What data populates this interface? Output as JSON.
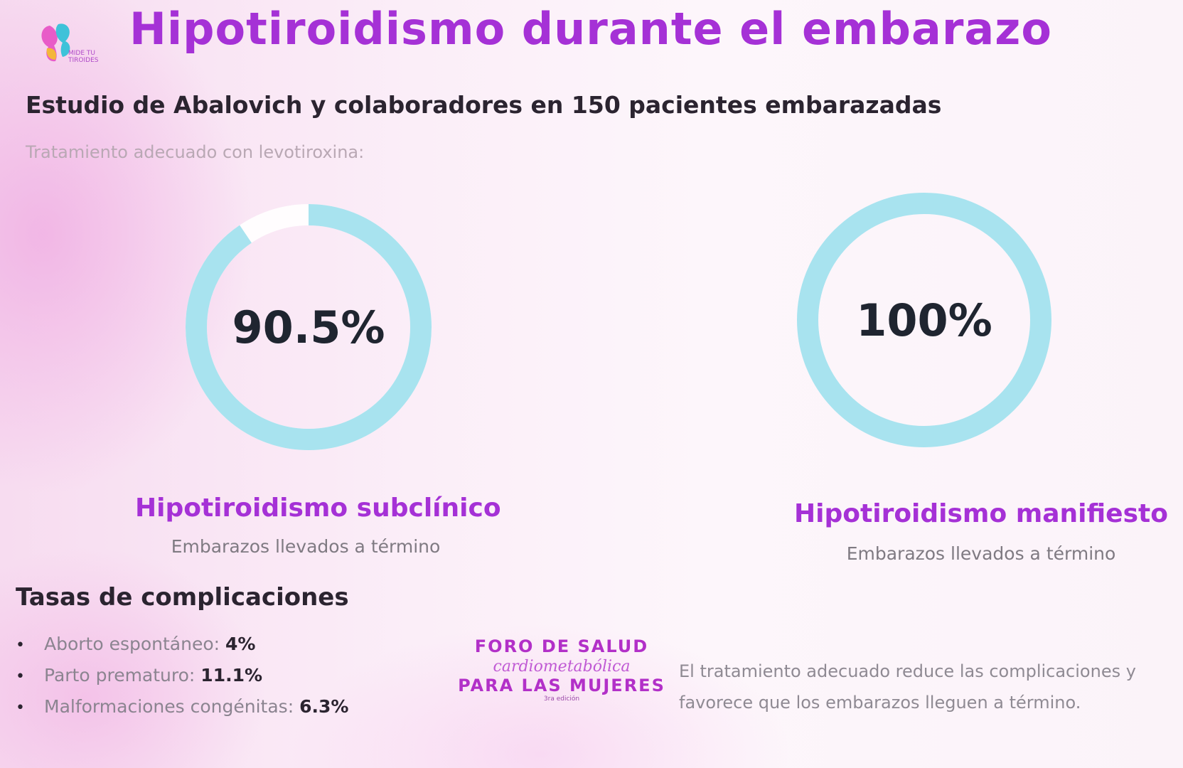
{
  "slide": {
    "title": "Hipotiroidismo durante el embarazo",
    "subtitle": "Estudio de Abalovich y colaboradores en 150 pacientes embarazadas",
    "caption": "Tratamiento adecuado con levotiroxina:",
    "logo_text": "MIDE TU TIROIDES"
  },
  "chart_data": [
    {
      "type": "pie",
      "style": "donut",
      "value_percent": 90.5,
      "label": "90.5%",
      "title": "Hipotiroidismo subclínico",
      "subtitle": "Embarazos llevados a término"
    },
    {
      "type": "pie",
      "style": "donut",
      "value_percent": 100,
      "label": "100%",
      "title": "Hipotiroidismo manifiesto",
      "subtitle": "Embarazos llevados a término"
    }
  ],
  "colors": {
    "accent": "#a531d6",
    "ring": "#a8e3ef",
    "ring_track": "#ffffff",
    "text_dark": "#1f2530",
    "text_muted": "#8f8a93"
  },
  "complications": {
    "heading": "Tasas de complicaciones",
    "items": [
      {
        "label": "Aborto espontáneo:",
        "value": "4%"
      },
      {
        "label": "Parto prematuro:",
        "value": "11.1%"
      },
      {
        "label": "Malformaciones congénitas:",
        "value": "6.3%"
      }
    ]
  },
  "event_logo": {
    "line1": "FORO DE SALUD",
    "line2": "cardiometabólica",
    "line3": "PARA LAS MUJERES",
    "line4": "3ra edición"
  },
  "note": "El tratamiento adecuado reduce las complicaciones y favorece que los embarazos lleguen a término."
}
